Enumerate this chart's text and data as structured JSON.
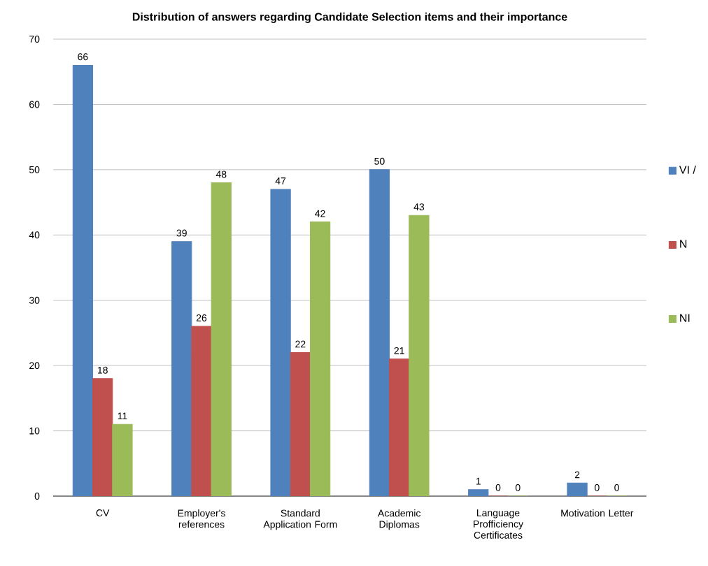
{
  "chart_data": {
    "type": "bar",
    "title": "Distribution of answers regarding Candidate Selection items and their importance",
    "categories": [
      "CV",
      "Employer's references",
      "Standard Application Form",
      "Academic Diplomas",
      "Language Profficiency Certificates",
      "Motivation Letter"
    ],
    "series": [
      {
        "name": "VI /",
        "color": "#4f81bd",
        "values": [
          66,
          39,
          47,
          50,
          1,
          2
        ]
      },
      {
        "name": "N",
        "color": "#c0504d",
        "values": [
          18,
          26,
          22,
          21,
          0,
          0
        ]
      },
      {
        "name": "NI",
        "color": "#9bbb59",
        "values": [
          11,
          48,
          42,
          43,
          0,
          0
        ]
      }
    ],
    "ylim": [
      0,
      70
    ],
    "yticks": [
      0,
      10,
      20,
      30,
      40,
      50,
      60,
      70
    ],
    "grid": "y",
    "legend": "right",
    "data_labels": true
  }
}
